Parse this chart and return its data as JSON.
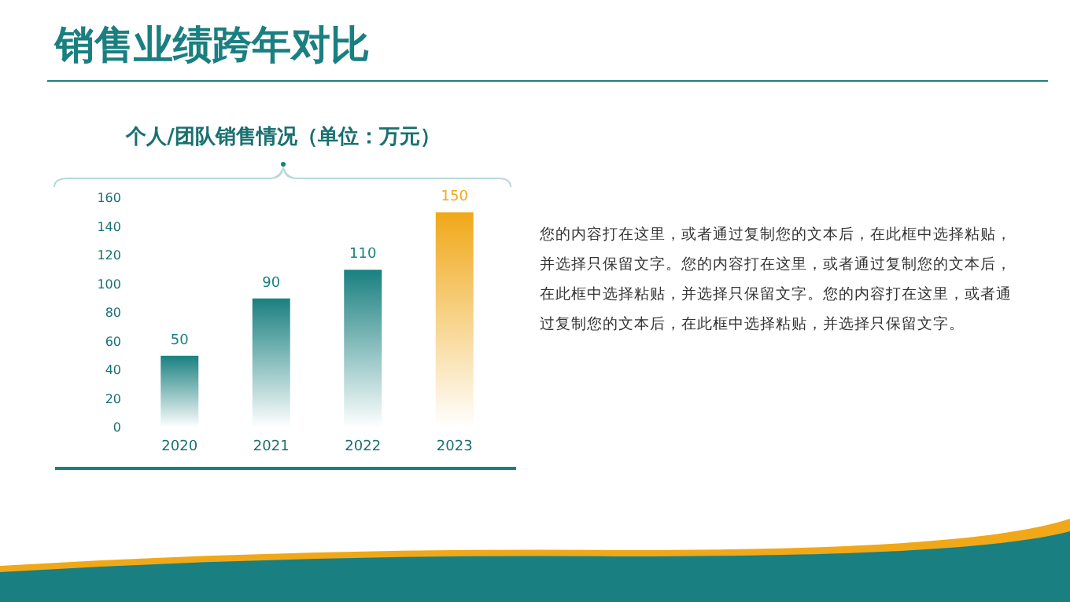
{
  "chart_data": {
    "type": "bar",
    "title": "销售业绩跨年对比",
    "subtitle": "个人/团队销售情况（单位：万元）",
    "categories": [
      "2020",
      "2021",
      "2022",
      "2023"
    ],
    "values": [
      50,
      90,
      110,
      150
    ],
    "colors": [
      "#1a8080",
      "#1a8080",
      "#1a8080",
      "#f0a818"
    ],
    "ylim": [
      0,
      160
    ],
    "yticks": [
      0,
      20,
      40,
      60,
      80,
      100,
      120,
      140,
      160
    ],
    "grid": false,
    "data_labels": true,
    "annotations": [
      "您的内容打在这里，或者通过复制您的文本后，在此框中选择粘贴，并选择只保留文字。您的内容打在这里，或者通过复制您的文本后，在此框中选择粘贴，并选择只保留文字。您的内容打在这里，或者通过复制您的文本后，在此框中选择粘贴，并选择只保留文字。"
    ]
  }
}
